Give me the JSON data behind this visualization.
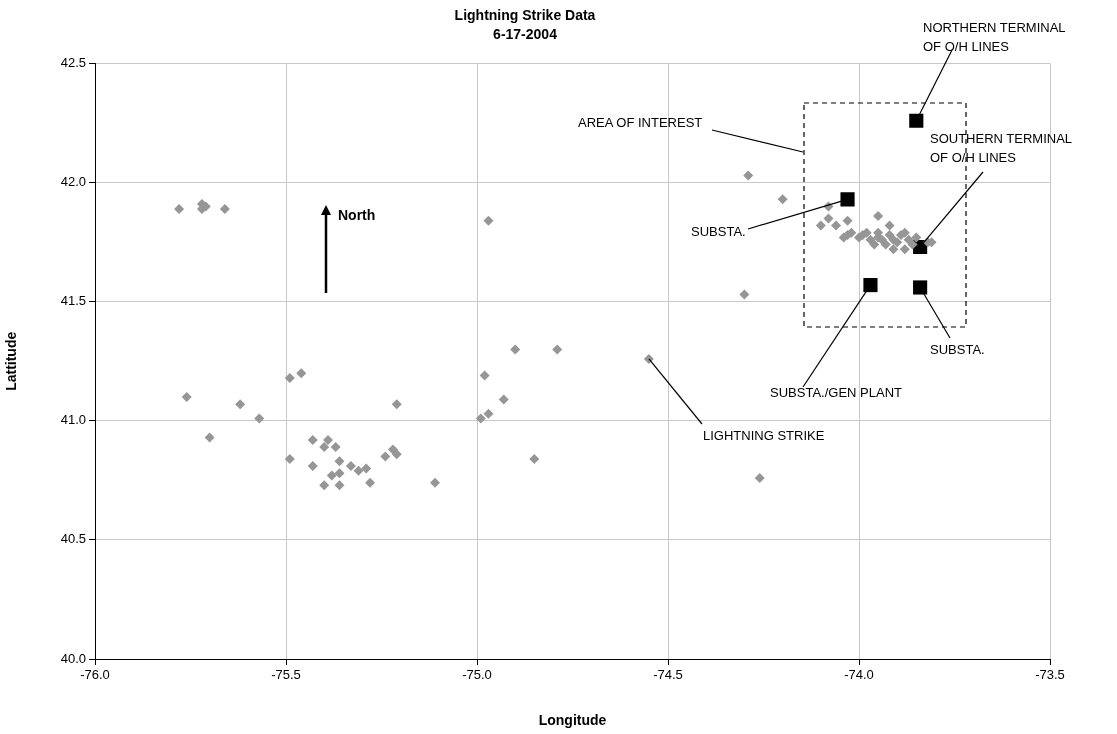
{
  "chart_data": {
    "type": "scatter",
    "title": "Lightning Strike Data",
    "subtitle": "6-17-2004",
    "xlabel": "Longitude",
    "ylabel": "Lattitude",
    "xlim": [
      -76,
      -73.5
    ],
    "ylim": [
      40,
      42.5
    ],
    "xticks": [
      {
        "value": -76,
        "label": "-76.0"
      },
      {
        "value": -75.5,
        "label": "-75.5"
      },
      {
        "value": -75,
        "label": "-75.0"
      },
      {
        "value": -74.5,
        "label": "-74.5"
      },
      {
        "value": -74,
        "label": "-74.0"
      },
      {
        "value": -73.5,
        "label": "-73.5"
      }
    ],
    "yticks": [
      {
        "value": 40,
        "label": "40.0"
      },
      {
        "value": 40.5,
        "label": "40.5"
      },
      {
        "value": 41,
        "label": "41.0"
      },
      {
        "value": 41.5,
        "label": "41.5"
      },
      {
        "value": 42,
        "label": "42.0"
      },
      {
        "value": 42.5,
        "label": "42.5"
      }
    ],
    "grid": true,
    "legend": false,
    "series": [
      {
        "color": "#969696",
        "marker": "diamond",
        "x": [
          -75.78,
          -75.72,
          -75.72,
          -75.71,
          -75.66,
          -75.76,
          -75.62,
          -75.57,
          -75.49,
          -75.46,
          -75.21,
          -75.7,
          -75.49,
          -75.43,
          -75.39,
          -75.4,
          -75.37,
          -75.43,
          -75.36,
          -75.33,
          -75.38,
          -75.36,
          -75.4,
          -75.36,
          -75.31,
          -75.29,
          -75.28,
          -75.24,
          -75.22,
          -75.21,
          -75.11,
          -74.97,
          -74.9,
          -74.79,
          -74.55,
          -74.98,
          -74.93,
          -74.97,
          -74.99,
          -74.85,
          -74.3,
          -74.26,
          -74.29,
          -74.2,
          -74.08,
          -74.08,
          -74.1,
          -74.06,
          -74.03,
          -73.95,
          -73.92,
          -74.04,
          -74.03,
          -74.02,
          -74,
          -73.99,
          -73.98,
          -73.97,
          -73.96,
          -73.95,
          -73.95,
          -73.94,
          -73.93,
          -73.92,
          -73.91,
          -73.91,
          -73.9,
          -73.89,
          -73.88,
          -73.88,
          -73.87,
          -73.86,
          -73.85,
          -73.82,
          -73.81
        ],
        "values": [
          41.89,
          41.91,
          41.89,
          41.9,
          41.89,
          41.1,
          41.07,
          41.01,
          41.18,
          41.2,
          41.07,
          40.93,
          40.84,
          40.92,
          40.92,
          40.89,
          40.89,
          40.81,
          40.83,
          40.81,
          40.77,
          40.78,
          40.73,
          40.73,
          40.79,
          40.8,
          40.74,
          40.85,
          40.88,
          40.86,
          40.74,
          41.84,
          41.3,
          41.3,
          41.26,
          41.19,
          41.09,
          41.03,
          41.01,
          40.84,
          41.53,
          40.76,
          42.03,
          41.93,
          41.9,
          41.85,
          41.82,
          41.82,
          41.84,
          41.86,
          41.82,
          41.77,
          41.78,
          41.79,
          41.77,
          41.78,
          41.79,
          41.76,
          41.74,
          41.77,
          41.79,
          41.76,
          41.74,
          41.78,
          41.72,
          41.76,
          41.75,
          41.78,
          41.72,
          41.79,
          41.76,
          41.74,
          41.77,
          41.75,
          41.75
        ]
      },
      {
        "color": "#000000",
        "marker": "square",
        "x": [
          -73.85,
          -74.03,
          -73.84,
          -73.97,
          -73.84
        ],
        "values": [
          42.26,
          41.93,
          41.73,
          41.57,
          41.56
        ]
      }
    ],
    "annotations": [
      "North",
      "AREA OF INTEREST",
      {
        "text": "NORTHERN TERMINAL\nOF O/H LINES",
        "x": -73.85,
        "y": 42.26
      },
      {
        "text": "SOUTHERN TERMINAL\nOF O/H LINES",
        "x": -73.84,
        "y": 41.73
      },
      {
        "text": "SUBSTA.",
        "x": -74.03,
        "y": 41.93
      },
      {
        "text": "SUBSTA./GEN PLANT",
        "x": -73.97,
        "y": 41.57
      },
      {
        "text": "SUBSTA.",
        "x": -73.84,
        "y": 41.56
      },
      {
        "text": "LIGHTNING STRIKE",
        "x": -74.55,
        "y": 41.26
      }
    ]
  }
}
